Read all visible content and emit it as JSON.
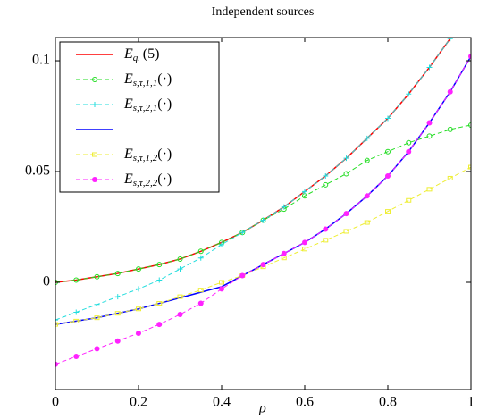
{
  "chart_data": {
    "type": "line",
    "title": "Independent sources",
    "xlabel": "ρ",
    "x": [
      0,
      0.05,
      0.1,
      0.15,
      0.2,
      0.25,
      0.3,
      0.35,
      0.4,
      0.45,
      0.5,
      0.55,
      0.6,
      0.65,
      0.7,
      0.75,
      0.8,
      0.85,
      0.9,
      0.95,
      1
    ],
    "xlim": [
      0,
      1
    ],
    "ylim": [
      -0.0484,
      0.1105
    ],
    "xticks": [
      0,
      0.2,
      0.4,
      0.6,
      0.8,
      1
    ],
    "yticks": [
      0,
      0.05,
      0.1
    ],
    "legend": "upper left",
    "series": [
      {
        "name": "Eq. (5)",
        "color": "#ff0000",
        "style": "solid",
        "marker": "none",
        "values": [
          0,
          0.001,
          0.0025,
          0.004,
          0.006,
          0.008,
          0.0105,
          0.014,
          0.018,
          0.0225,
          0.028,
          0.034,
          0.041,
          0.048,
          0.056,
          0.065,
          0.074,
          0.085,
          0.097,
          0.11,
          0.124
        ]
      },
      {
        "name": "Es,τ,1,1(·)",
        "color": "#22dd22",
        "style": "dashed",
        "marker": "circle-open",
        "values": [
          0,
          0.001,
          0.0025,
          0.004,
          0.006,
          0.008,
          0.0105,
          0.014,
          0.018,
          0.0225,
          0.028,
          0.033,
          0.039,
          0.044,
          0.049,
          0.055,
          0.059,
          0.063,
          0.066,
          0.069,
          0.071
        ]
      },
      {
        "name": "Es,τ,2,1(·)",
        "color": "#22dddd",
        "style": "dashed",
        "marker": "plus",
        "values": [
          -0.017,
          -0.0135,
          -0.01,
          -0.0065,
          -0.003,
          0.001,
          0.006,
          0.011,
          0.017,
          0.0225,
          0.028,
          0.034,
          0.041,
          0.048,
          0.056,
          0.065,
          0.074,
          0.085,
          0.097,
          0.11,
          0.124
        ]
      },
      {
        "color": "#0000ff",
        "style": "solid",
        "marker": "none",
        "values": [
          -0.019,
          -0.0175,
          -0.016,
          -0.014,
          -0.012,
          -0.0095,
          -0.007,
          -0.0045,
          -0.002,
          0.003,
          0.008,
          0.013,
          0.018,
          0.024,
          0.031,
          0.039,
          0.048,
          0.059,
          0.072,
          0.086,
          0.102
        ]
      },
      {
        "name": "Es,τ,1,2(·)",
        "color": "#eeee33",
        "style": "dashed",
        "marker": "square-open",
        "values": [
          -0.019,
          -0.0175,
          -0.016,
          -0.014,
          -0.012,
          -0.0095,
          -0.0065,
          -0.0035,
          0,
          0.003,
          0.007,
          0.011,
          0.015,
          0.019,
          0.023,
          0.027,
          0.032,
          0.037,
          0.042,
          0.047,
          0.052
        ]
      },
      {
        "name": "Es,τ,2,2(·)",
        "color": "#ff22ff",
        "style": "dashed",
        "marker": "circle",
        "values": [
          -0.037,
          -0.0335,
          -0.03,
          -0.0265,
          -0.023,
          -0.019,
          -0.0145,
          -0.0095,
          -0.003,
          0.003,
          0.008,
          0.013,
          0.018,
          0.024,
          0.031,
          0.039,
          0.048,
          0.059,
          0.072,
          0.086,
          0.102
        ]
      }
    ]
  }
}
